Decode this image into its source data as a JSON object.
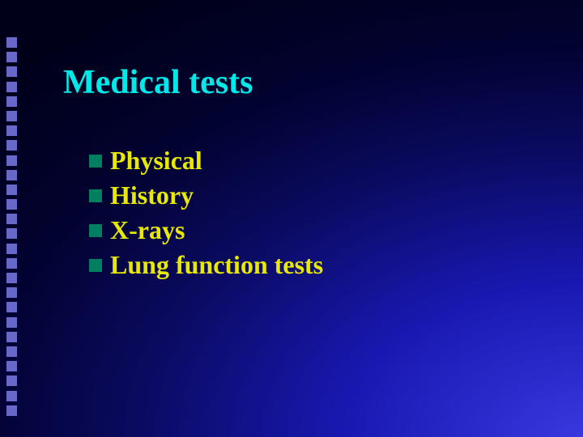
{
  "slide": {
    "title": "Medical tests",
    "title_color": "#00e8e8",
    "title_fontsize": 42,
    "bullets": [
      {
        "text": "Physical"
      },
      {
        "text": "History"
      },
      {
        "text": "X-rays"
      },
      {
        "text": "Lung function tests"
      }
    ],
    "bullet_text_color": "#e8e800",
    "bullet_fontsize": 32,
    "bullet_marker_color": "#008060",
    "bullet_marker_size": 16,
    "deco": {
      "square_color": "#6868c8",
      "count": 26
    }
  }
}
